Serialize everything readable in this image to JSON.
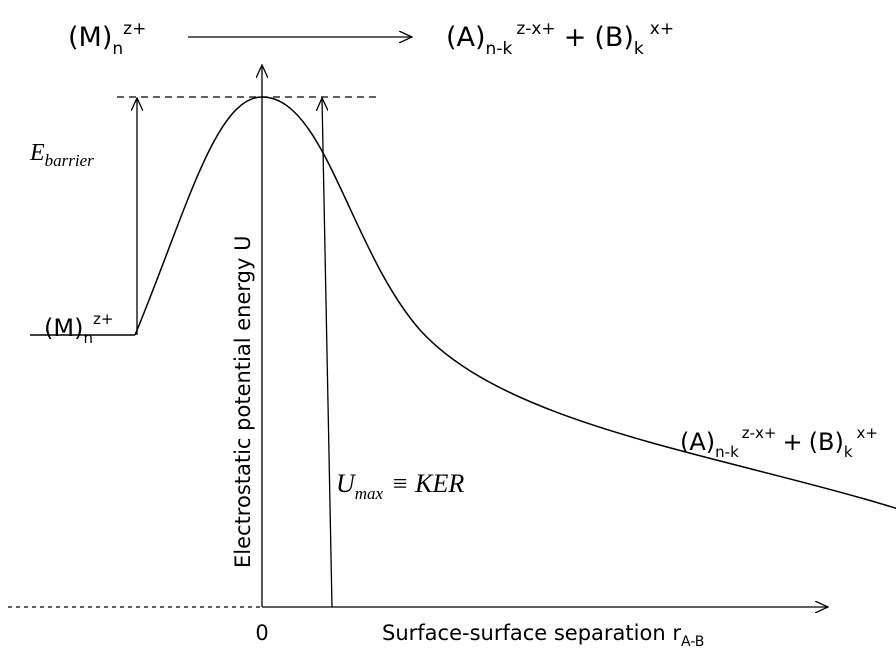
{
  "top_equation": {
    "reactant": {
      "main": "(M)",
      "subscript": "n",
      "superscript": "z+"
    },
    "products": [
      {
        "main": "(A)",
        "subscript": "n-k",
        "superscript": "z-x+"
      },
      {
        "main": "(B)",
        "subscript": "k",
        "superscript": "x+"
      }
    ],
    "operator": "+"
  },
  "barrier_label": {
    "main": "E",
    "subscript": "barrier"
  },
  "initial_state": {
    "main": "(M)",
    "subscript": "n",
    "superscript": "z+"
  },
  "final_state": {
    "products": [
      {
        "main": "(A)",
        "subscript": "n-k",
        "superscript": "z-x+"
      },
      {
        "main": "(B)",
        "subscript": "k",
        "superscript": "x+"
      }
    ],
    "operator": "+"
  },
  "kinetic_label": {
    "main": "U",
    "subscript": "max",
    "relation": "≡ KER"
  },
  "y_axis_label": "Electrostatic potential energy U",
  "origin_label": "0",
  "x_axis_label": {
    "main": "Surface-surface separation r",
    "subscript": "A-B"
  }
}
